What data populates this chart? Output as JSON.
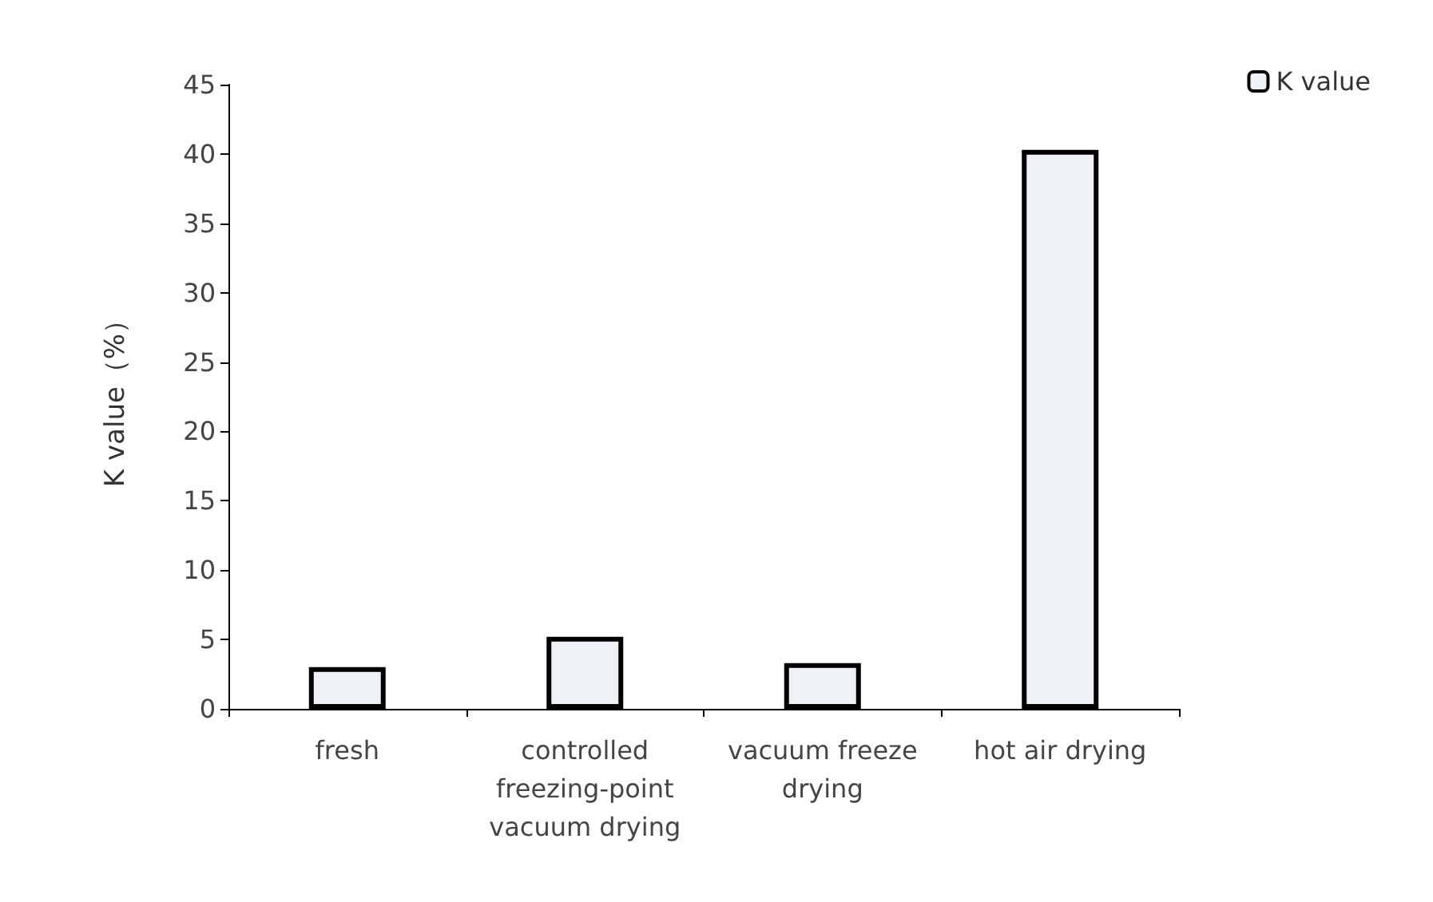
{
  "chart_data": {
    "type": "bar",
    "ylabel": "K value（%）",
    "categories": [
      "fresh",
      "controlled\nfreezing-point\nvacuum drying",
      "vacuum freeze\ndrying",
      "hot air drying"
    ],
    "series": [
      {
        "name": "K value",
        "color": "#eef1f6",
        "values": [
          3.0,
          5.2,
          3.3,
          40.3
        ]
      }
    ],
    "ylim": [
      0,
      45
    ],
    "yticks": [
      0,
      5,
      10,
      15,
      20,
      25,
      30,
      35,
      40,
      45
    ],
    "grid": false,
    "legend": "top right"
  }
}
